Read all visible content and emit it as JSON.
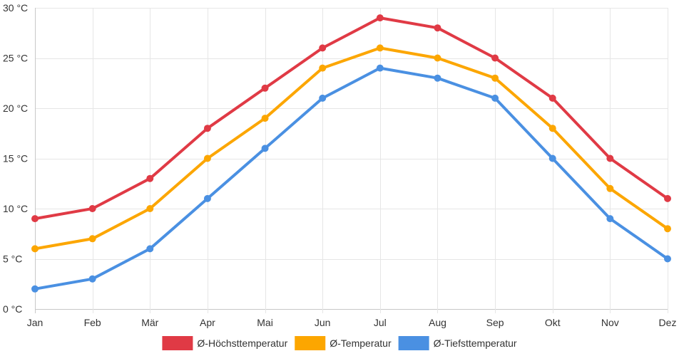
{
  "chart_data": {
    "type": "line",
    "title": "",
    "xlabel": "",
    "ylabel": "",
    "categories": [
      "Jan",
      "Feb",
      "Mär",
      "Apr",
      "Mai",
      "Jun",
      "Jul",
      "Aug",
      "Sep",
      "Okt",
      "Nov",
      "Dez"
    ],
    "ylim": [
      0,
      30
    ],
    "yticks": [
      0,
      5,
      10,
      15,
      20,
      25,
      30
    ],
    "y_unit": "°C",
    "grid": true,
    "legend_position": "bottom",
    "series": [
      {
        "name": "Ø-Höchsttemperatur",
        "color": "#e03a45",
        "values": [
          9,
          10,
          13,
          18,
          22,
          26,
          29,
          28,
          25,
          21,
          15,
          11
        ]
      },
      {
        "name": "Ø-Temperatur",
        "color": "#fca600",
        "values": [
          6,
          7,
          10,
          15,
          19,
          24,
          26,
          25,
          23,
          18,
          12,
          8
        ]
      },
      {
        "name": "Ø-Tiefsttemperatur",
        "color": "#4a90e2",
        "values": [
          2,
          3,
          6,
          11,
          16,
          21,
          24,
          23,
          21,
          15,
          9,
          5
        ]
      }
    ]
  }
}
